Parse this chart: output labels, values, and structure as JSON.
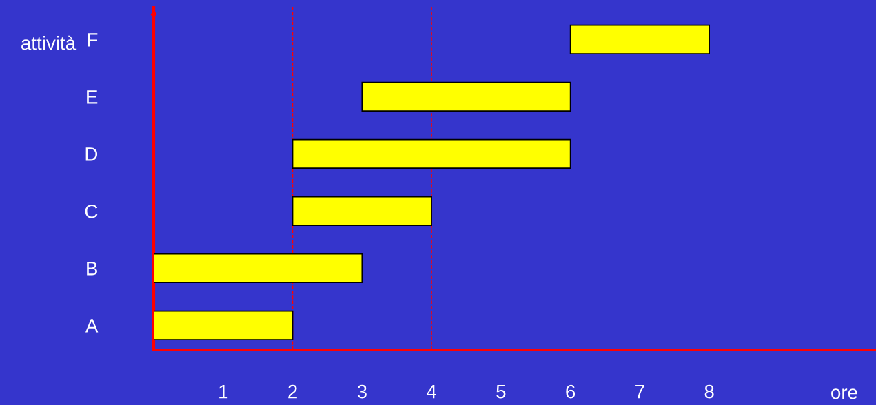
{
  "chart_data": {
    "type": "bar",
    "orientation": "horizontal",
    "categories": [
      "F",
      "E",
      "D",
      "C",
      "B",
      "A"
    ],
    "base": [
      6,
      3,
      2,
      2,
      0,
      0
    ],
    "values": [
      2,
      3,
      4,
      2,
      3,
      2
    ],
    "color": "#ffff00",
    "xlim": [
      0,
      10.4
    ],
    "xticks": [
      1,
      2,
      3,
      4,
      5,
      6,
      7,
      8
    ],
    "xlabel": "ore",
    "ylabel": "attività",
    "ref_lines": [
      {
        "axis": "x",
        "value": 2,
        "color": "#ff0000",
        "line_style": "dashed"
      },
      {
        "axis": "x",
        "value": 4,
        "color": "#ff0000",
        "line_style": "dashed"
      }
    ],
    "grid": false,
    "legend": false
  }
}
